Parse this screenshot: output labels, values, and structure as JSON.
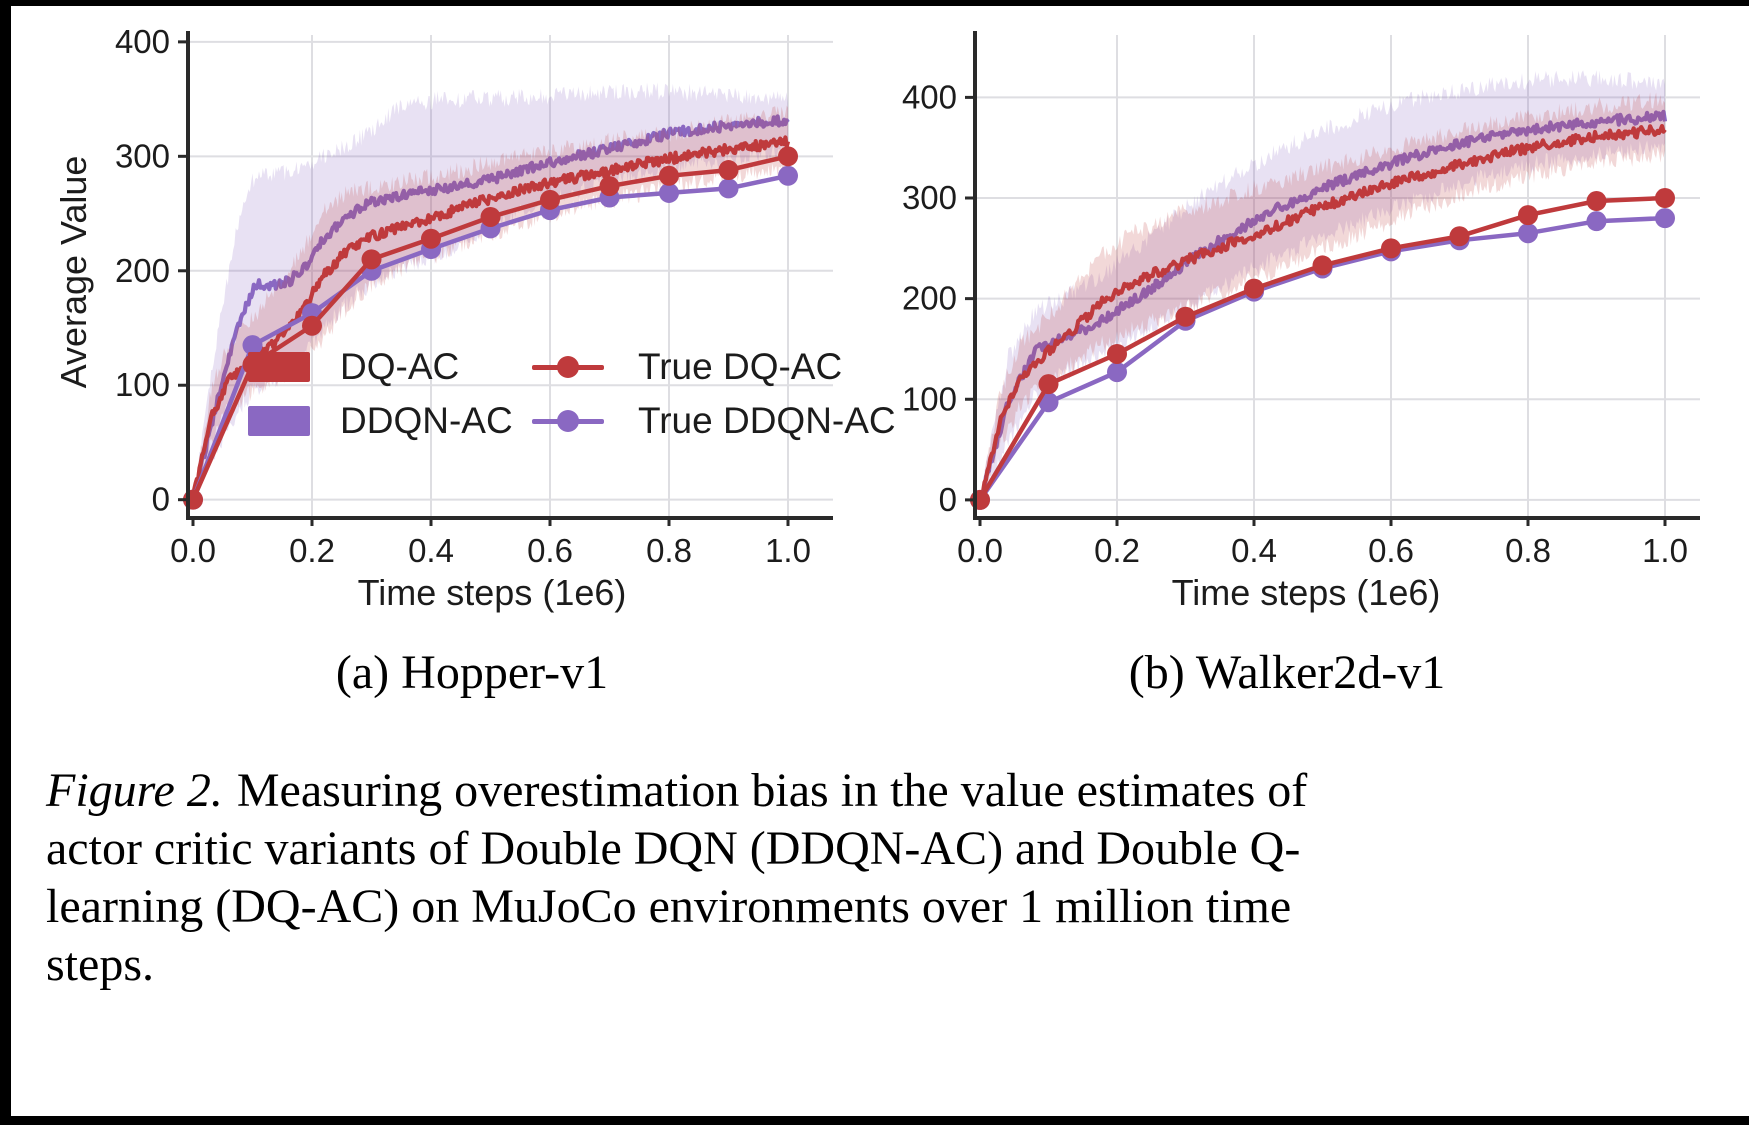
{
  "figure": {
    "caption_prefix": "Figure 2.",
    "caption_lines": [
      "Measuring overestimation bias in the value estimates of",
      "actor critic variants of Double DQN (DDQN-AC) and Double Q-",
      "learning (DQ-AC) on MuJoCo environments over 1 million time",
      "steps."
    ]
  },
  "colors": {
    "dq_ac": "#bf3a3c",
    "ddqn_ac": "#8a68c2",
    "dq_ac_band": "rgba(191,58,60,0.20)",
    "ddqn_ac_band": "rgba(138,104,194,0.20)",
    "axis": "#2a2a2a",
    "grid": "#dedee2",
    "tick_text": "#1c1c1c"
  },
  "legend": {
    "items": [
      {
        "label": "DQ-AC",
        "type": "patch",
        "color_key": "dq_ac"
      },
      {
        "label": "DDQN-AC",
        "type": "patch",
        "color_key": "ddqn_ac"
      },
      {
        "label": "True DQ-AC",
        "type": "line-marker",
        "color_key": "dq_ac"
      },
      {
        "label": "True DDQN-AC",
        "type": "line-marker",
        "color_key": "ddqn_ac"
      }
    ]
  },
  "chart_data": [
    {
      "type": "line",
      "id": "hopper-v1",
      "title": "(a) Hopper-v1",
      "xlabel": "Time steps (1e6)",
      "ylabel": "Average Value",
      "xticks": [
        0.0,
        0.2,
        0.4,
        0.6,
        0.8,
        1.0
      ],
      "yticks": [
        0,
        100,
        200,
        300,
        400
      ],
      "xlim": [
        0,
        1
      ],
      "ylim": [
        -16,
        406
      ],
      "grid": true,
      "legend_position": "lower center, left chart only",
      "series": [
        {
          "name": "DDQN-AC",
          "style": "noisy-band",
          "color_key": "ddqn_ac",
          "x": [
            0,
            0.04,
            0.08,
            0.105,
            0.13,
            0.165,
            0.19,
            0.22,
            0.26,
            0.3,
            0.35,
            0.42,
            0.5,
            0.6,
            0.7,
            0.8,
            0.9,
            1.0
          ],
          "y": [
            0,
            85,
            158,
            188,
            186,
            192,
            205,
            228,
            248,
            260,
            266,
            272,
            280,
            295,
            306,
            320,
            327,
            332
          ],
          "band_upper": [
            0,
            140,
            255,
            283,
            285,
            287,
            292,
            300,
            310,
            322,
            345,
            350,
            350,
            353,
            356,
            357,
            353,
            351
          ],
          "band_lower": [
            0,
            45,
            82,
            98,
            103,
            112,
            128,
            150,
            172,
            190,
            203,
            215,
            240,
            262,
            278,
            291,
            299,
            306
          ]
        },
        {
          "name": "DQ-AC",
          "style": "noisy-band",
          "color_key": "dq_ac",
          "x": [
            0,
            0.03,
            0.06,
            0.1,
            0.14,
            0.18,
            0.22,
            0.26,
            0.3,
            0.34,
            0.4,
            0.48,
            0.56,
            0.64,
            0.72,
            0.8,
            0.9,
            1.0
          ],
          "y": [
            0,
            70,
            105,
            122,
            138,
            162,
            196,
            218,
            230,
            237,
            246,
            260,
            272,
            281,
            290,
            298,
            306,
            313
          ],
          "band_upper": [
            0,
            95,
            138,
            158,
            185,
            215,
            252,
            268,
            272,
            276,
            282,
            292,
            300,
            308,
            315,
            320,
            330,
            338
          ],
          "band_lower": [
            0,
            48,
            80,
            95,
            105,
            118,
            142,
            168,
            188,
            200,
            212,
            228,
            243,
            255,
            264,
            273,
            283,
            290
          ]
        },
        {
          "name": "True DDQN-AC",
          "style": "marker-line",
          "color_key": "ddqn_ac",
          "x": [
            0,
            0.1,
            0.2,
            0.3,
            0.4,
            0.5,
            0.6,
            0.7,
            0.8,
            0.9,
            1.0
          ],
          "y": [
            0,
            135,
            163,
            200,
            219,
            237,
            253,
            264,
            268,
            272,
            283
          ]
        },
        {
          "name": "True DQ-AC",
          "style": "marker-line",
          "color_key": "dq_ac",
          "x": [
            0,
            0.1,
            0.2,
            0.3,
            0.4,
            0.5,
            0.6,
            0.7,
            0.8,
            0.9,
            1.0
          ],
          "y": [
            0,
            118,
            152,
            210,
            228,
            247,
            262,
            274,
            283,
            288,
            300
          ]
        }
      ]
    },
    {
      "type": "line",
      "id": "walker2d-v1",
      "title": "(b) Walker2d-v1",
      "xlabel": "Time steps (1e6)",
      "ylabel": "",
      "xticks": [
        0.0,
        0.2,
        0.4,
        0.6,
        0.8,
        1.0
      ],
      "yticks": [
        0,
        100,
        200,
        300,
        400
      ],
      "xlim": [
        0,
        1
      ],
      "ylim": [
        -18,
        462
      ],
      "grid": true,
      "series": [
        {
          "name": "DDQN-AC",
          "style": "noisy-band",
          "color_key": "ddqn_ac",
          "x": [
            0,
            0.04,
            0.08,
            0.12,
            0.16,
            0.2,
            0.25,
            0.3,
            0.36,
            0.43,
            0.5,
            0.58,
            0.66,
            0.74,
            0.82,
            0.9,
            1.0
          ],
          "y": [
            0,
            95,
            148,
            160,
            172,
            188,
            210,
            235,
            262,
            288,
            310,
            330,
            347,
            360,
            370,
            376,
            381
          ],
          "band_upper": [
            0,
            140,
            188,
            200,
            215,
            235,
            262,
            290,
            318,
            345,
            368,
            388,
            402,
            412,
            418,
            419,
            415
          ],
          "band_lower": [
            0,
            55,
            105,
            125,
            138,
            152,
            170,
            190,
            215,
            240,
            262,
            284,
            305,
            322,
            335,
            344,
            352
          ]
        },
        {
          "name": "DQ-AC",
          "style": "noisy-band",
          "color_key": "dq_ac",
          "x": [
            0,
            0.03,
            0.06,
            0.1,
            0.14,
            0.18,
            0.23,
            0.28,
            0.34,
            0.41,
            0.48,
            0.56,
            0.64,
            0.72,
            0.8,
            0.9,
            1.0
          ],
          "y": [
            0,
            80,
            122,
            148,
            172,
            198,
            218,
            232,
            248,
            266,
            286,
            306,
            322,
            337,
            350,
            361,
            368
          ],
          "band_upper": [
            0,
            108,
            155,
            182,
            215,
            245,
            268,
            282,
            296,
            312,
            326,
            342,
            356,
            370,
            381,
            391,
            398
          ],
          "band_lower": [
            0,
            55,
            95,
            118,
            138,
            155,
            172,
            185,
            202,
            222,
            244,
            266,
            289,
            307,
            322,
            336,
            343
          ]
        },
        {
          "name": "True DDQN-AC",
          "style": "marker-line",
          "color_key": "ddqn_ac",
          "x": [
            0,
            0.1,
            0.2,
            0.3,
            0.4,
            0.5,
            0.6,
            0.7,
            0.8,
            0.9,
            1.0
          ],
          "y": [
            0,
            97,
            127,
            178,
            207,
            230,
            247,
            258,
            265,
            277,
            280
          ]
        },
        {
          "name": "True DQ-AC",
          "style": "marker-line",
          "color_key": "dq_ac",
          "x": [
            0,
            0.1,
            0.2,
            0.3,
            0.4,
            0.5,
            0.6,
            0.7,
            0.8,
            0.9,
            1.0
          ],
          "y": [
            0,
            115,
            145,
            182,
            210,
            233,
            250,
            262,
            283,
            297,
            300
          ]
        }
      ]
    }
  ]
}
